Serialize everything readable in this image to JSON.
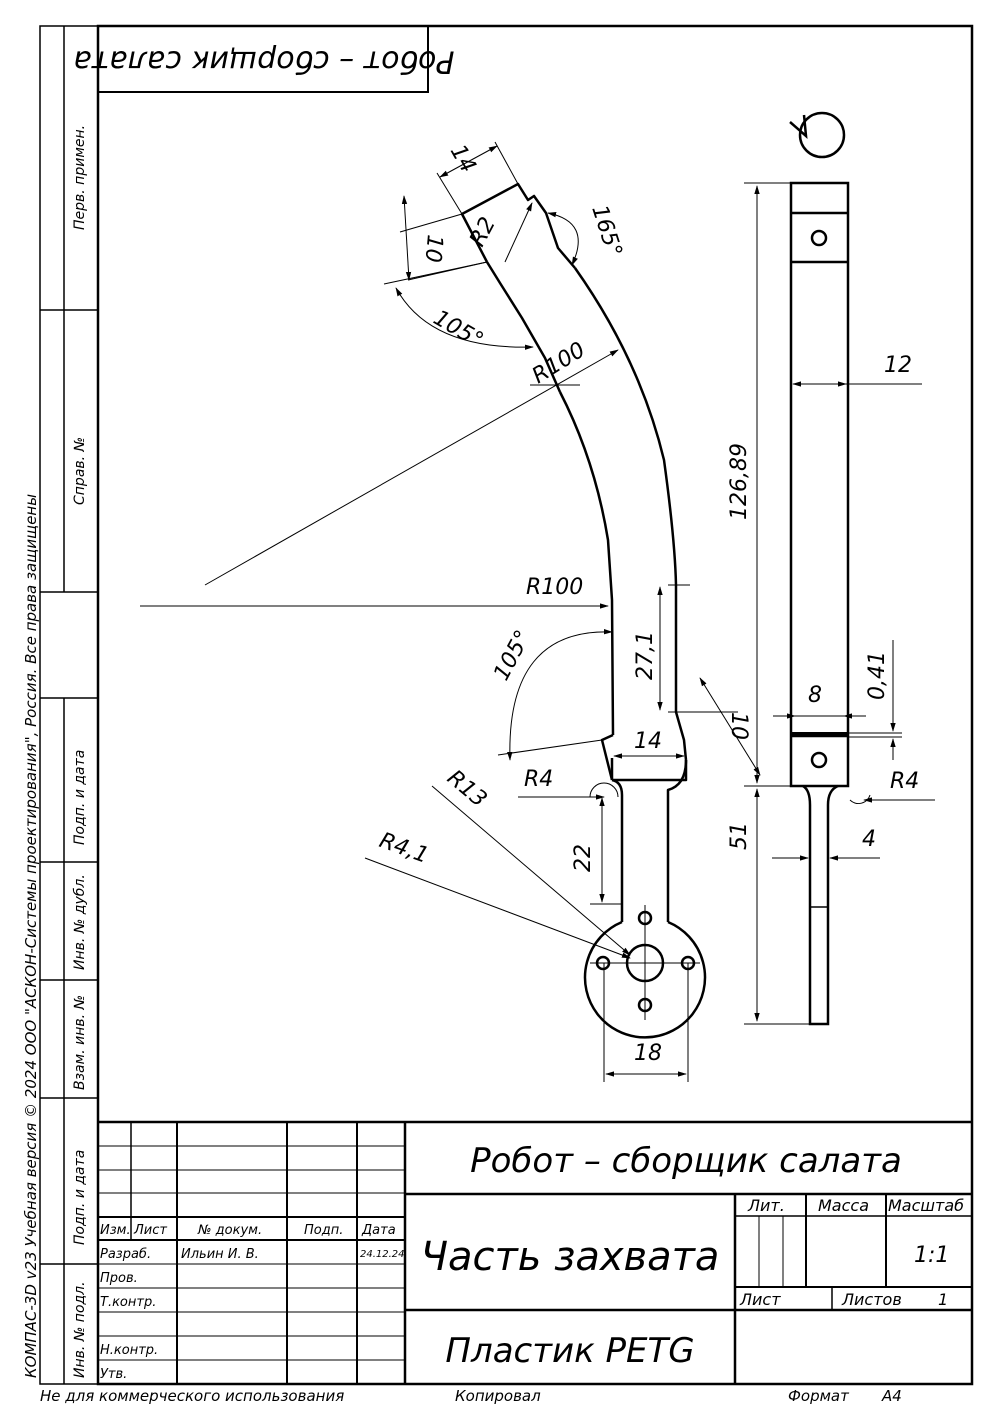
{
  "drawing": {
    "project_title": "Робот – сборщик салата",
    "mirrored_title": "Робот – сборщик салата",
    "part_name": "Часть захвата",
    "material": "Пластик PETG",
    "scale": "1:1",
    "sheet_label": "Лист",
    "sheets_label": "Листов",
    "sheets_count": "1"
  },
  "title_block": {
    "col_headers": [
      "Изм.",
      "Лист",
      "№ докум.",
      "Подп.",
      "Дата"
    ],
    "rows": [
      "Разраб.",
      "Пров.",
      "Т.контр.",
      "Н.контр.",
      "Утв."
    ],
    "developer": "Ильин И. В.",
    "date": "24.12.24",
    "lit_label": "Лит.",
    "mass_label": "Масса",
    "scale_label": "Масштаб"
  },
  "side_stamps": {
    "perv_primen": "Перв. примен.",
    "sprav_no": "Справ. №",
    "podp_data_1": "Подп. и дата",
    "inv_no_dubl": "Инв. № дубл.",
    "vzam_inv_no": "Взам. инв. №",
    "podp_data_2": "Подп. и дата",
    "inv_no_podl": "Инв. № подл.",
    "copyright": "КОМПАС-3D v23 Учебная версия © 2024 ООО \"АСКОН-Системы проектирования\", Россия. Все права защищены"
  },
  "footer": {
    "noncommercial": "Не для коммерческого использования",
    "copied": "Копировал",
    "format_label": "Формат",
    "format_value": "A4"
  },
  "dimensions": {
    "top_width": "14",
    "tip_height": "10",
    "tip_radius": "R2",
    "angle_165": "165°",
    "angle_105_top": "105°",
    "r100_top": "R100",
    "r100_mid": "R100",
    "len_27": "27,1",
    "angle_105_bottom": "105°",
    "neck_width": "14",
    "side_10": "10",
    "r4": "R4",
    "r13": "R13",
    "r41": "R4,1",
    "neck_len": "22",
    "hub_width": "18",
    "side_width": "12",
    "total_len": "126,89",
    "slot_width": "8",
    "slot_gap": "0,41",
    "side_r4": "R4",
    "side_thin": "4",
    "side_lower": "51"
  }
}
